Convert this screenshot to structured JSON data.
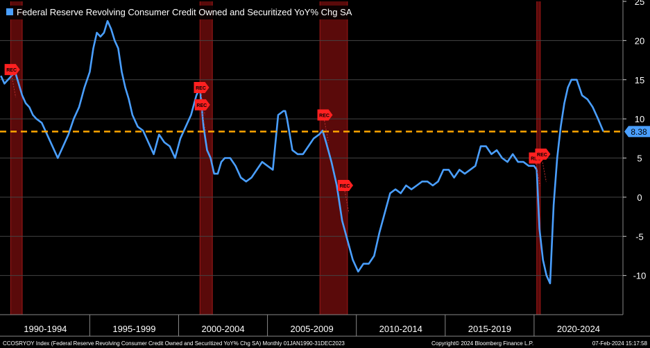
{
  "chart_data": {
    "type": "line",
    "title": "Federal Reserve Revolving Consumer Credit Owned and Securitized YoY% Chg SA",
    "series_name": "Federal Reserve Revolving Consumer Credit Owned and Securitized YoY% Chg SA",
    "ylim": [
      -15,
      25
    ],
    "xlim": [
      1989.95,
      2025.0
    ],
    "yticks": [
      "25",
      "20",
      "15",
      "10",
      "5",
      "0",
      "-5",
      "-10"
    ],
    "ytick_values": [
      25,
      20,
      15,
      10,
      5,
      0,
      -5,
      -10
    ],
    "period_labels": [
      "1990-1994",
      "1995-1999",
      "2000-2004",
      "2005-2009",
      "2010-2014",
      "2015-2019",
      "2020-2024"
    ],
    "period_starts": [
      1990,
      1995,
      2000,
      2005,
      2010,
      2015,
      2020
    ],
    "recessions": [
      [
        1990.55,
        1991.2
      ],
      [
        2001.2,
        2001.9
      ],
      [
        2007.95,
        2009.5
      ],
      [
        2020.15,
        2020.35
      ]
    ],
    "rec_label": "REC",
    "rec_markers": [
      {
        "x": 1990.6,
        "y": 16.3
      },
      {
        "x": 2001.25,
        "y": 14.0
      },
      {
        "x": 2001.3,
        "y": 11.8
      },
      {
        "x": 2008.2,
        "y": 10.5
      },
      {
        "x": 2009.35,
        "y": 1.5
      },
      {
        "x": 2020.1,
        "y": 5.0
      },
      {
        "x": 2020.45,
        "y": 5.5
      }
    ],
    "reference_line": 8.38,
    "last_value": "8.38",
    "x": [
      1990.0,
      1990.2,
      1990.4,
      1990.6,
      1990.8,
      1991.0,
      1991.2,
      1991.4,
      1991.6,
      1991.8,
      1992.0,
      1992.3,
      1992.6,
      1992.9,
      1993.2,
      1993.5,
      1993.8,
      1994.1,
      1994.4,
      1994.7,
      1995.0,
      1995.2,
      1995.4,
      1995.6,
      1995.8,
      1996.0,
      1996.2,
      1996.4,
      1996.6,
      1996.8,
      1997.0,
      1997.2,
      1997.4,
      1997.7,
      1998.0,
      1998.3,
      1998.6,
      1998.9,
      1999.2,
      1999.5,
      1999.8,
      2000.1,
      2000.4,
      2000.7,
      2001.0,
      2001.2,
      2001.4,
      2001.6,
      2001.8,
      2002.0,
      2002.2,
      2002.4,
      2002.6,
      2002.9,
      2003.2,
      2003.5,
      2003.8,
      2004.1,
      2004.4,
      2004.7,
      2005.0,
      2005.3,
      2005.6,
      2005.9,
      2006.0,
      2006.1,
      2006.4,
      2006.7,
      2007.0,
      2007.3,
      2007.6,
      2007.9,
      2008.1,
      2008.3,
      2008.6,
      2008.9,
      2009.2,
      2009.5,
      2009.8,
      2010.1,
      2010.4,
      2010.7,
      2011.0,
      2011.3,
      2011.6,
      2011.9,
      2012.2,
      2012.5,
      2012.8,
      2013.1,
      2013.4,
      2013.7,
      2014.0,
      2014.3,
      2014.6,
      2014.9,
      2015.2,
      2015.5,
      2015.8,
      2016.1,
      2016.4,
      2016.7,
      2017.0,
      2017.3,
      2017.6,
      2017.9,
      2018.2,
      2018.5,
      2018.8,
      2019.1,
      2019.4,
      2019.7,
      2020.0,
      2020.15,
      2020.3,
      2020.5,
      2020.7,
      2020.9,
      2021.1,
      2021.3,
      2021.5,
      2021.7,
      2021.9,
      2022.1,
      2022.4,
      2022.7,
      2023.0,
      2023.3,
      2023.6,
      2023.9
    ],
    "values": [
      15.5,
      14.5,
      15.0,
      15.5,
      16.0,
      14.5,
      13.0,
      12.0,
      11.5,
      10.5,
      10.0,
      9.5,
      8.0,
      6.5,
      5.0,
      6.5,
      8.0,
      10.0,
      11.5,
      14.0,
      16.0,
      19.0,
      21.0,
      20.5,
      21.0,
      22.5,
      21.5,
      20.0,
      19.0,
      16.0,
      14.0,
      12.5,
      10.5,
      9.0,
      8.5,
      7.0,
      5.5,
      8.0,
      7.0,
      6.5,
      5.0,
      7.5,
      9.0,
      10.5,
      13.0,
      14.0,
      9.0,
      6.0,
      5.0,
      3.0,
      3.0,
      4.5,
      5.0,
      5.0,
      4.0,
      2.5,
      2.0,
      2.5,
      3.5,
      4.5,
      4.0,
      3.5,
      10.5,
      11.0,
      11.0,
      10.0,
      6.0,
      5.5,
      5.5,
      6.5,
      7.5,
      8.0,
      8.5,
      7.0,
      4.5,
      1.5,
      -3.0,
      -5.5,
      -8.0,
      -9.5,
      -8.5,
      -8.5,
      -7.5,
      -4.5,
      -2.0,
      0.5,
      1.0,
      0.5,
      1.5,
      1.0,
      1.5,
      2.0,
      2.0,
      1.5,
      2.0,
      3.5,
      3.5,
      2.5,
      3.5,
      3.0,
      3.5,
      4.0,
      6.5,
      6.5,
      5.5,
      6.0,
      5.0,
      4.5,
      5.5,
      4.5,
      4.5,
      4.0,
      4.0,
      3.5,
      -4.0,
      -8.0,
      -10.0,
      -11.0,
      -1.0,
      5.0,
      9.0,
      12.0,
      14.0,
      15.0,
      15.0,
      13.0,
      12.5,
      11.5,
      10.0,
      8.38
    ]
  },
  "footer": {
    "left": "CCOSRYOY Index (Federal Reserve Revolving Consumer Credit Owned and Securitized YoY% Chg SA)  Monthly 01JAN1990-31DEC2023",
    "center": "Copyright© 2024 Bloomberg Finance L.P.",
    "right": "07-Feb-2024 15:17:58"
  },
  "colors": {
    "line": "#4a9fff",
    "reference": "#ffa500",
    "recession": "#5a0a0a",
    "rec_marker": "#ff2020",
    "grid": "#444444"
  }
}
